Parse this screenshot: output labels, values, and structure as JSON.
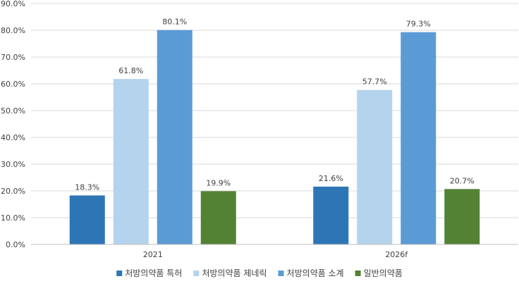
{
  "chart_data": {
    "type": "bar",
    "categories": [
      "2021",
      "2026f"
    ],
    "series": [
      {
        "name": "처방의약품 특허",
        "values": [
          18.3,
          21.6
        ],
        "color": "#2e75b6"
      },
      {
        "name": "처방의약품 제네릭",
        "values": [
          61.8,
          57.7
        ],
        "color": "#b4d3ec"
      },
      {
        "name": "처방의약품 소계",
        "values": [
          80.1,
          79.3
        ],
        "color": "#5b9bd5"
      },
      {
        "name": "일반의약품",
        "values": [
          19.9,
          20.7
        ],
        "color": "#548235"
      }
    ],
    "data_labels": [
      [
        "18.3%",
        "21.6%"
      ],
      [
        "61.8%",
        "57.7%"
      ],
      [
        "80.1%",
        "79.3%"
      ],
      [
        "19.9%",
        "20.7%"
      ]
    ],
    "y_ticks": [
      "0.0%",
      "10.0%",
      "20.0%",
      "30.0%",
      "40.0%",
      "50.0%",
      "60.0%",
      "70.0%",
      "80.0%",
      "90.0%"
    ],
    "ylim": [
      0,
      90
    ],
    "grid": true,
    "legend_position": "bottom",
    "title": "",
    "xlabel": "",
    "ylabel": ""
  }
}
